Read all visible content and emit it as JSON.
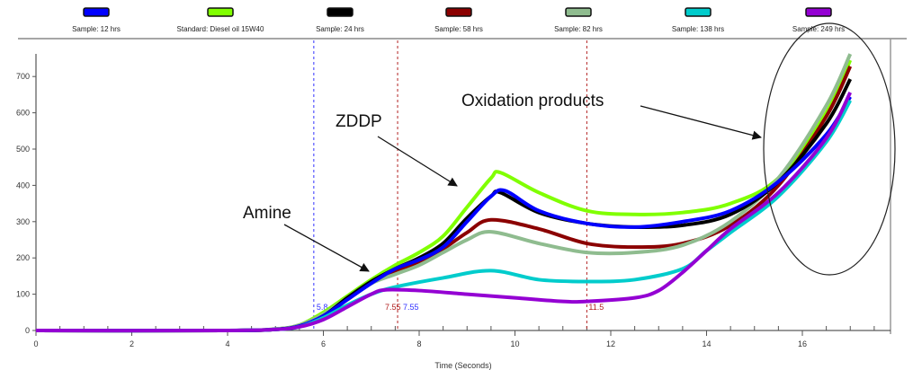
{
  "chart_data": {
    "type": "line",
    "title": "",
    "xlabel": "Time (Seconds)",
    "ylabel": "",
    "xlim": [
      0,
      18
    ],
    "ylim": [
      0,
      800
    ],
    "xticks": [
      0,
      2,
      4,
      6,
      8,
      10,
      12,
      14,
      16
    ],
    "yticks": [
      0,
      100,
      200,
      300,
      400,
      500,
      600,
      700
    ],
    "grid": false,
    "legend_position": "top",
    "series": [
      {
        "name": "Sample: 12 hrs",
        "color": "#0000ff",
        "x": [
          0,
          4,
          5,
          5.5,
          6,
          6.5,
          7,
          7.5,
          8,
          8.5,
          9,
          9.5,
          9.8,
          10.5,
          11.5,
          12.5,
          13.5,
          14.5,
          15.5,
          16.5,
          17
        ],
        "y": [
          0,
          0,
          3,
          12,
          40,
          85,
          130,
          170,
          195,
          230,
          300,
          370,
          385,
          330,
          295,
          285,
          300,
          330,
          410,
          540,
          644
        ]
      },
      {
        "name": "Standard: Diesel oil 15W40",
        "color": "#80ff00",
        "x": [
          0,
          4,
          5,
          5.5,
          6,
          6.5,
          7,
          7.5,
          8,
          8.5,
          9,
          9.5,
          9.7,
          10.5,
          11.5,
          12.5,
          13.5,
          14.5,
          15.5,
          16.5,
          17
        ],
        "y": [
          0,
          0,
          4,
          15,
          50,
          95,
          140,
          180,
          215,
          260,
          340,
          420,
          435,
          380,
          330,
          320,
          325,
          350,
          420,
          600,
          745
        ]
      },
      {
        "name": "Sample: 24 hrs",
        "color": "#000000",
        "x": [
          0,
          4,
          5,
          5.5,
          6,
          6.5,
          7,
          7.5,
          8,
          8.5,
          9,
          9.5,
          9.7,
          10.5,
          11.5,
          12.5,
          13.5,
          14.5,
          15.5,
          16.5,
          17
        ],
        "y": [
          0,
          0,
          3,
          12,
          40,
          90,
          135,
          170,
          200,
          240,
          310,
          370,
          380,
          325,
          295,
          285,
          290,
          320,
          410,
          570,
          693
        ]
      },
      {
        "name": "Sample: 58 hrs",
        "color": "#8b0000",
        "x": [
          0,
          4,
          5,
          5.5,
          6,
          6.5,
          7,
          7.5,
          8,
          8.5,
          9,
          9.5,
          10.5,
          11.5,
          12.5,
          13.5,
          14.5,
          15.5,
          16.5,
          17
        ],
        "y": [
          0,
          0,
          3,
          12,
          40,
          85,
          130,
          160,
          190,
          225,
          270,
          305,
          280,
          240,
          230,
          240,
          290,
          400,
          590,
          728
        ]
      },
      {
        "name": "Sample: 82 hrs",
        "color": "#8fbc8f",
        "x": [
          0,
          4,
          5,
          5.5,
          6,
          6.5,
          7,
          7.5,
          8,
          8.5,
          9,
          9.5,
          10.5,
          11.5,
          12.5,
          13.5,
          14.5,
          15.5,
          16.5,
          17
        ],
        "y": [
          0,
          0,
          4,
          15,
          45,
          90,
          130,
          155,
          180,
          215,
          250,
          272,
          240,
          215,
          215,
          235,
          300,
          420,
          620,
          762
        ]
      },
      {
        "name": "Sample: 138 hrs",
        "color": "#00cccc",
        "x": [
          0,
          4,
          5,
          5.5,
          6,
          6.5,
          7,
          7.5,
          8.5,
          9.5,
          10.5,
          11.5,
          12.5,
          13.5,
          14,
          14.5,
          15.5,
          16.5,
          17
        ],
        "y": [
          0,
          0,
          3,
          10,
          35,
          70,
          100,
          120,
          145,
          165,
          140,
          135,
          140,
          170,
          220,
          270,
          370,
          520,
          634
        ]
      },
      {
        "name": "Sample: 249 hrs",
        "color": "#9400d3",
        "x": [
          0,
          4,
          5,
          5.5,
          6,
          6.5,
          7,
          7.3,
          8,
          9,
          10,
          11,
          11.5,
          12.5,
          13,
          13.5,
          14,
          14.5,
          15.5,
          16.5,
          17
        ],
        "y": [
          0,
          0,
          3,
          10,
          30,
          65,
          100,
          112,
          110,
          100,
          90,
          80,
          80,
          90,
          110,
          160,
          220,
          280,
          380,
          530,
          656
        ]
      }
    ],
    "markers": [
      {
        "x": 5.8,
        "label": "5.8",
        "color": "#3333ff"
      },
      {
        "x": 7.55,
        "label": "7.55",
        "color": "#b22222"
      },
      {
        "x": 7.55,
        "label": "7.55",
        "color": "#3333ff"
      },
      {
        "x": 11.5,
        "label": "11.5",
        "color": "#b22222"
      }
    ],
    "annotations": [
      {
        "text": "ZDDP"
      },
      {
        "text": "Amine"
      },
      {
        "text": "Oxidation products"
      }
    ]
  }
}
